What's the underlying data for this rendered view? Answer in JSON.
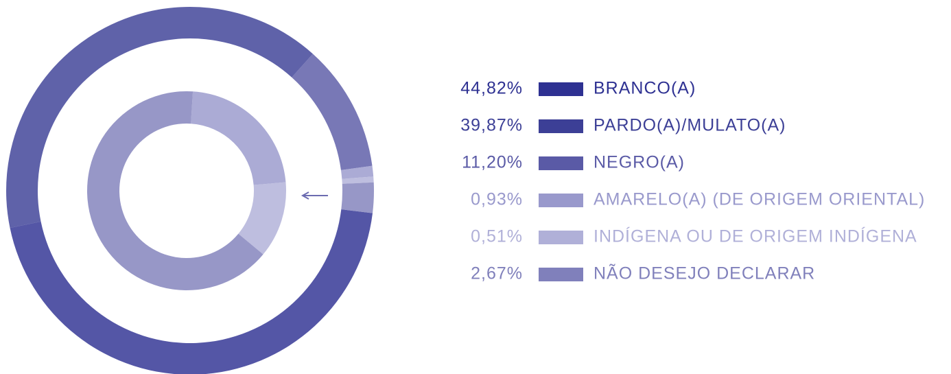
{
  "chart_data": {
    "type": "donut",
    "categories": [
      "BRANCO(A)",
      "PARDO(A)/MULATO(A)",
      "NEGRO(A)",
      "AMARELO(A) (DE ORIGEM ORIENTAL)",
      "INDÍGENA OU DE ORIGEM INDÍGENA",
      "NÃO DESEJO DECLARAR"
    ],
    "values": [
      44.82,
      39.87,
      11.2,
      0.93,
      0.51,
      2.67
    ],
    "value_labels": [
      "44,82%",
      "39,87%",
      "11,20%",
      "0,93%",
      "0,51%",
      "2,67%"
    ],
    "colors": [
      "#2e3192",
      "#3c3f96",
      "#5a5aa6",
      "#9999cc",
      "#b0b0d8",
      "#8080bb"
    ]
  }
}
